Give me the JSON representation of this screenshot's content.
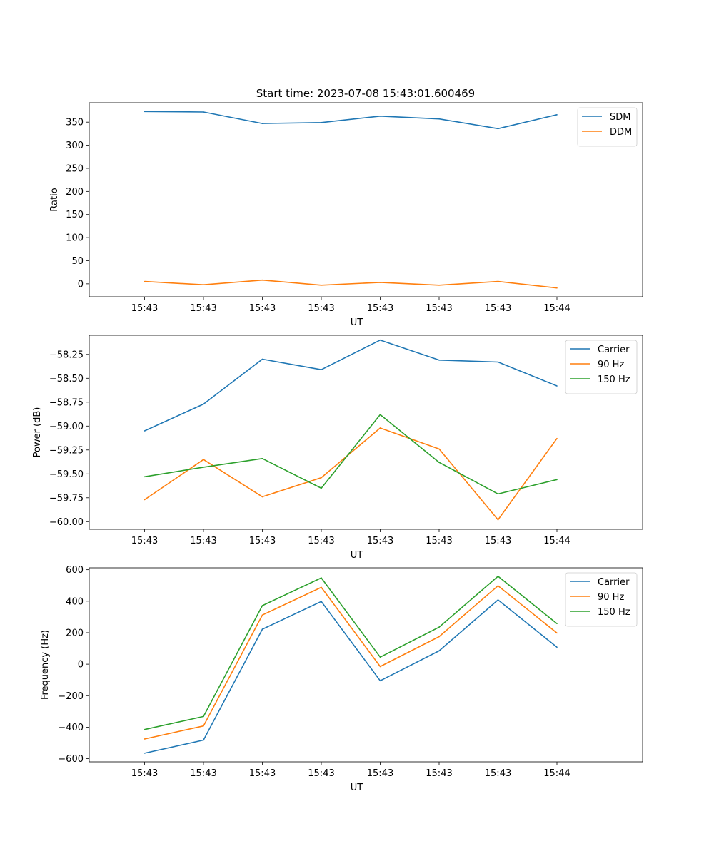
{
  "figure": {
    "title": "Start time: 2023-07-08 15:43:01.600469"
  },
  "chart_data": [
    {
      "type": "line",
      "xlabel": "UT",
      "ylabel": "Ratio",
      "xticks": [
        "15:43",
        "15:43",
        "15:43",
        "15:43",
        "15:43",
        "15:43",
        "15:43",
        "15:44"
      ],
      "x": [
        0.47,
        1.13,
        1.79,
        2.45,
        3.11,
        3.77,
        4.43,
        5.09
      ],
      "xlim": [
        -0.15,
        6.05
      ],
      "ylim": [
        -28,
        392
      ],
      "yticks": [
        0,
        50,
        100,
        150,
        200,
        250,
        300,
        350
      ],
      "yticklabels": [
        "0",
        "50",
        "100",
        "150",
        "200",
        "250",
        "300",
        "350"
      ],
      "legend_position": "top-right",
      "series": [
        {
          "name": "SDM",
          "color": "#1f77b4",
          "values": [
            373,
            372,
            347,
            349,
            363,
            357,
            336,
            366
          ]
        },
        {
          "name": "DDM",
          "color": "#ff7f0e",
          "values": [
            5,
            -2,
            8,
            -3,
            3,
            -3,
            5,
            -9
          ]
        }
      ]
    },
    {
      "type": "line",
      "xlabel": "UT",
      "ylabel": "Power (dB)",
      "xticks": [
        "15:43",
        "15:43",
        "15:43",
        "15:43",
        "15:43",
        "15:43",
        "15:43",
        "15:44"
      ],
      "x": [
        0.47,
        1.13,
        1.79,
        2.45,
        3.11,
        3.77,
        4.43,
        5.09
      ],
      "xlim": [
        -0.15,
        6.05
      ],
      "ylim": [
        -60.08,
        -58.05
      ],
      "yticks": [
        -60.0,
        -59.75,
        -59.5,
        -59.25,
        -59.0,
        -58.75,
        -58.5,
        -58.25
      ],
      "yticklabels": [
        "−60.00",
        "−59.75",
        "−59.50",
        "−59.25",
        "−59.00",
        "−58.75",
        "−58.50",
        "−58.25"
      ],
      "legend_position": "top-right",
      "series": [
        {
          "name": "Carrier",
          "color": "#1f77b4",
          "values": [
            -59.05,
            -58.77,
            -58.3,
            -58.41,
            -58.1,
            -58.31,
            -58.33,
            -58.58
          ]
        },
        {
          "name": "90 Hz",
          "color": "#ff7f0e",
          "values": [
            -59.77,
            -59.35,
            -59.74,
            -59.54,
            -59.02,
            -59.24,
            -59.98,
            -59.13
          ]
        },
        {
          "name": "150 Hz",
          "color": "#2ca02c",
          "values": [
            -59.53,
            -59.43,
            -59.34,
            -59.65,
            -58.88,
            -59.38,
            -59.71,
            -59.56
          ]
        }
      ]
    },
    {
      "type": "line",
      "xlabel": "UT",
      "ylabel": "Frequency (Hz)",
      "xticks": [
        "15:43",
        "15:43",
        "15:43",
        "15:43",
        "15:43",
        "15:43",
        "15:43",
        "15:44"
      ],
      "x": [
        0.47,
        1.13,
        1.79,
        2.45,
        3.11,
        3.77,
        4.43,
        5.09
      ],
      "xlim": [
        -0.15,
        6.05
      ],
      "ylim": [
        -620,
        612
      ],
      "yticks": [
        -600,
        -400,
        -200,
        0,
        200,
        400,
        600
      ],
      "yticklabels": [
        "−600",
        "−400",
        "−200",
        "0",
        "200",
        "400",
        "600"
      ],
      "legend_position": "top-right",
      "series": [
        {
          "name": "Carrier",
          "color": "#1f77b4",
          "values": [
            -565,
            -482,
            222,
            398,
            -105,
            85,
            408,
            108
          ]
        },
        {
          "name": "90 Hz",
          "color": "#ff7f0e",
          "values": [
            -475,
            -392,
            312,
            488,
            -15,
            175,
            498,
            198
          ]
        },
        {
          "name": "150 Hz",
          "color": "#2ca02c",
          "values": [
            -415,
            -332,
            372,
            548,
            45,
            235,
            558,
            258
          ]
        }
      ]
    }
  ]
}
